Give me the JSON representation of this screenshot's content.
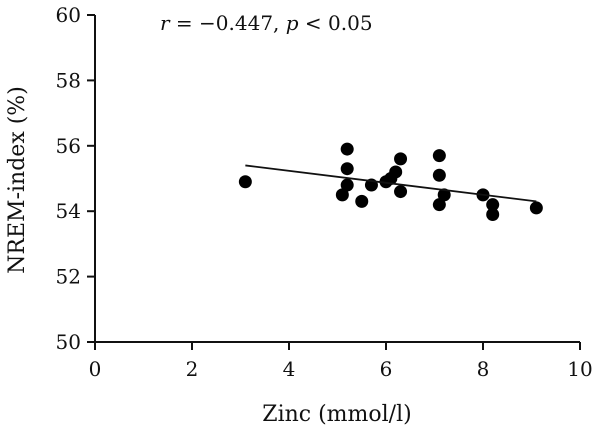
{
  "chart_data": {
    "type": "scatter",
    "xlabel": "Zinc (mmol/l)",
    "ylabel": "NREM-index (%)",
    "annotation": {
      "r_var": "r",
      "r_text": " = −0.447, ",
      "p_var": "p",
      "p_text": " < 0.05"
    },
    "xlim": [
      0,
      10
    ],
    "ylim": [
      50,
      60
    ],
    "x_ticks": [
      0,
      2,
      4,
      6,
      8,
      10
    ],
    "y_ticks": [
      50,
      52,
      54,
      56,
      58,
      60
    ],
    "grid": false,
    "points": [
      {
        "x": 3.1,
        "y": 54.9
      },
      {
        "x": 5.1,
        "y": 54.5
      },
      {
        "x": 5.2,
        "y": 55.9
      },
      {
        "x": 5.2,
        "y": 55.3
      },
      {
        "x": 5.2,
        "y": 54.8
      },
      {
        "x": 5.5,
        "y": 54.3
      },
      {
        "x": 5.7,
        "y": 54.8
      },
      {
        "x": 6.0,
        "y": 54.9
      },
      {
        "x": 6.1,
        "y": 55.0
      },
      {
        "x": 6.2,
        "y": 55.2
      },
      {
        "x": 6.3,
        "y": 55.6
      },
      {
        "x": 6.3,
        "y": 54.6
      },
      {
        "x": 7.1,
        "y": 55.7
      },
      {
        "x": 7.1,
        "y": 55.1
      },
      {
        "x": 7.1,
        "y": 54.2
      },
      {
        "x": 7.2,
        "y": 54.5
      },
      {
        "x": 8.0,
        "y": 54.5
      },
      {
        "x": 8.2,
        "y": 54.2
      },
      {
        "x": 8.2,
        "y": 53.9
      },
      {
        "x": 9.1,
        "y": 54.1
      }
    ],
    "regression_line": {
      "x": [
        3.1,
        9.1
      ],
      "y": [
        55.4,
        54.3
      ]
    }
  }
}
